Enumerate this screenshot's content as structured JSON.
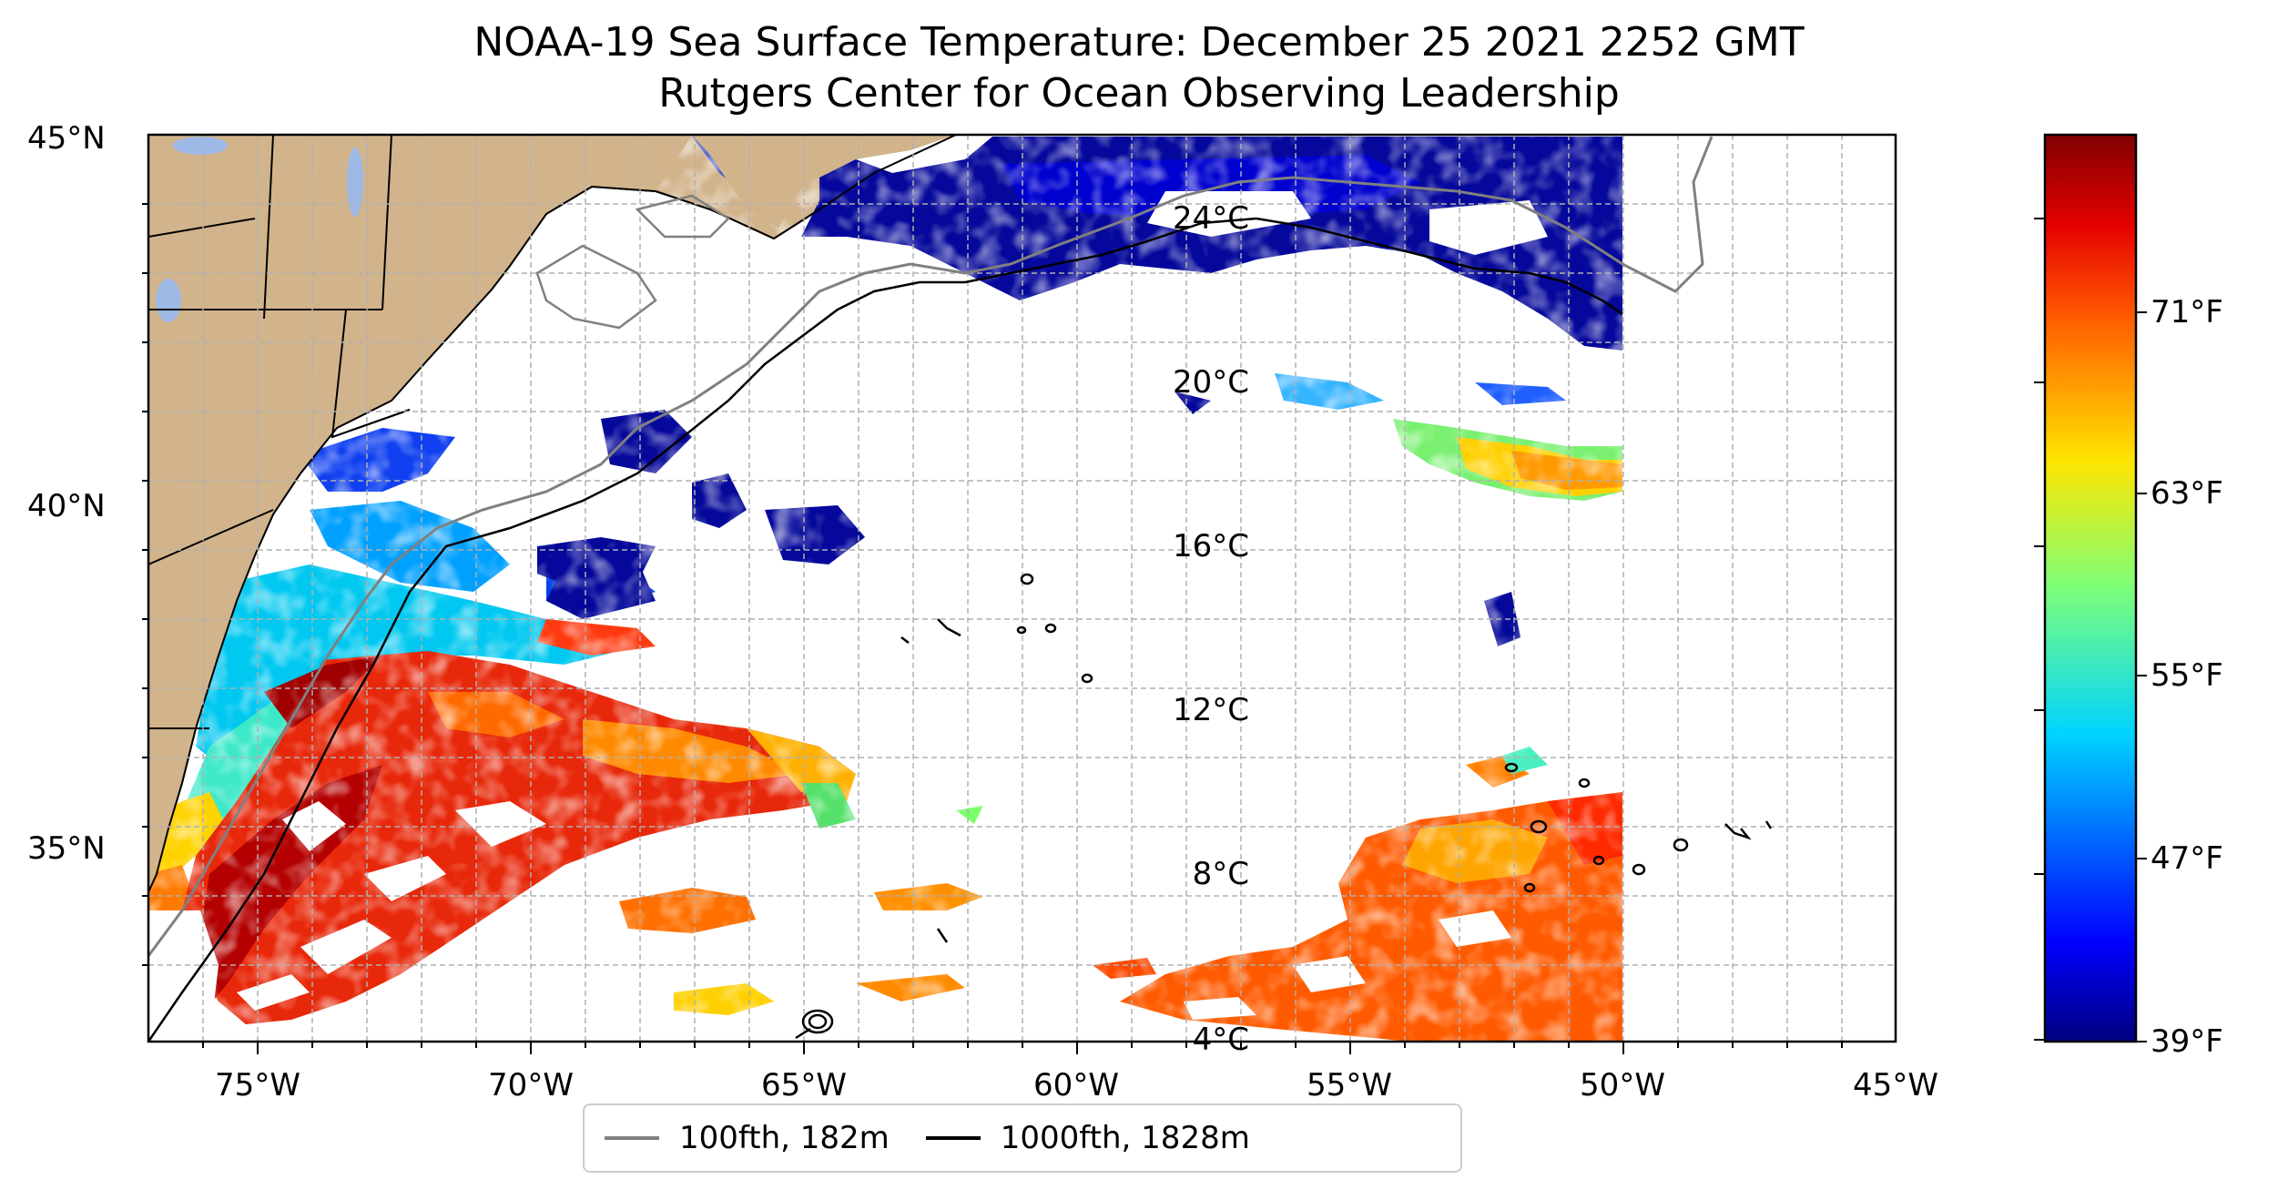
{
  "title": {
    "line1": "NOAA-19 Sea Surface Temperature: December 25 2021 2252 GMT",
    "line2": "Rutgers Center for Ocean Observing Leadership"
  },
  "axes": {
    "latitude_labels": [
      "45°N",
      "40°N",
      "35°N"
    ],
    "longitude_labels": [
      "75°W",
      "70°W",
      "65°W",
      "60°W",
      "55°W",
      "50°W",
      "45°W"
    ],
    "lon_range": [
      -77,
      -45
    ],
    "lat_range": [
      32.8,
      45
    ],
    "grid": true
  },
  "colorbar": {
    "celsius_labels": [
      "24°C",
      "20°C",
      "16°C",
      "12°C",
      "8°C",
      "4°C"
    ],
    "fahrenheit_labels": [
      "71°F",
      "63°F",
      "55°F",
      "47°F",
      "39°F"
    ],
    "colormap": "jet",
    "range_celsius": [
      4,
      26
    ]
  },
  "legend": {
    "items": [
      {
        "label": "100fth, 182m",
        "color": "#808080"
      },
      {
        "label": "1000fth, 1828m",
        "color": "#000000"
      }
    ]
  },
  "colors": {
    "land": "#d2b48c",
    "lakes": "#9fb9e6",
    "isobath_100": "#808080",
    "isobath_1000": "#000000"
  }
}
